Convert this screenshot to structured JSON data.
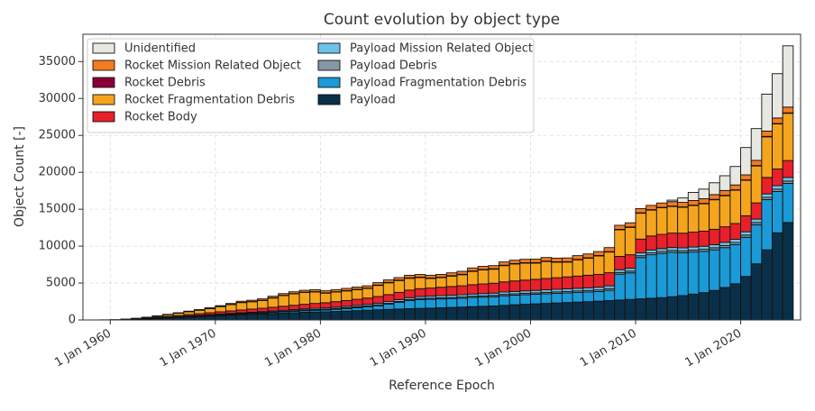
{
  "chart_data": {
    "type": "stacked-bar",
    "title": "Count evolution by object type",
    "x_label": "Reference Epoch",
    "y_label": "Object Count [-]",
    "x": [
      1957,
      1958,
      1959,
      1960,
      1961,
      1962,
      1963,
      1964,
      1965,
      1966,
      1967,
      1968,
      1969,
      1970,
      1971,
      1972,
      1973,
      1974,
      1975,
      1976,
      1977,
      1978,
      1979,
      1980,
      1981,
      1982,
      1983,
      1984,
      1985,
      1986,
      1987,
      1988,
      1989,
      1990,
      1991,
      1992,
      1993,
      1994,
      1995,
      1996,
      1997,
      1998,
      1999,
      2000,
      2001,
      2002,
      2003,
      2004,
      2005,
      2006,
      2007,
      2008,
      2009,
      2010,
      2011,
      2012,
      2013,
      2014,
      2015,
      2016,
      2017,
      2018,
      2019,
      2020,
      2021,
      2022,
      2023,
      2024
    ],
    "xlim": [
      1957.4,
      2025.7
    ],
    "xticks": [
      {
        "value": 1960,
        "label": "1 Jan 1960"
      },
      {
        "value": 1970,
        "label": "1 Jan 1970"
      },
      {
        "value": 1980,
        "label": "1 Jan 1980"
      },
      {
        "value": 1990,
        "label": "1 Jan 1990"
      },
      {
        "value": 2000,
        "label": "1 Jan 2000"
      },
      {
        "value": 2010,
        "label": "1 Jan 2010"
      },
      {
        "value": 2020,
        "label": "1 Jan 2020"
      }
    ],
    "ylim": [
      0,
      38700
    ],
    "yticks": [
      0,
      5000,
      10000,
      15000,
      20000,
      25000,
      30000,
      35000
    ],
    "grid": true,
    "legend_position": "upper-left",
    "series": [
      {
        "name": "Payload",
        "color": "#0a3049",
        "values": [
          0,
          5,
          10,
          25,
          50,
          90,
          140,
          200,
          260,
          330,
          400,
          460,
          520,
          580,
          640,
          700,
          750,
          800,
          860,
          920,
          980,
          1040,
          1080,
          1100,
          1150,
          1200,
          1260,
          1320,
          1380,
          1430,
          1480,
          1530,
          1570,
          1600,
          1650,
          1700,
          1750,
          1800,
          1850,
          1900,
          1980,
          2060,
          2120,
          2180,
          2240,
          2300,
          2360,
          2420,
          2480,
          2550,
          2620,
          2700,
          2780,
          2860,
          2940,
          3020,
          3150,
          3300,
          3500,
          3700,
          4000,
          4400,
          4900,
          5900,
          7600,
          9500,
          11800,
          13200
        ]
      },
      {
        "name": "Payload Fragmentation Debris",
        "color": "#1a9ad6",
        "values": [
          0,
          0,
          0,
          0,
          10,
          20,
          30,
          40,
          50,
          60,
          70,
          80,
          90,
          100,
          110,
          120,
          130,
          140,
          160,
          180,
          200,
          220,
          240,
          260,
          300,
          350,
          400,
          450,
          550,
          700,
          900,
          1100,
          1200,
          1200,
          1200,
          1200,
          1200,
          1250,
          1250,
          1250,
          1300,
          1300,
          1300,
          1300,
          1300,
          1300,
          1300,
          1300,
          1300,
          1300,
          1400,
          3500,
          3600,
          5600,
          5900,
          6000,
          6000,
          5800,
          5700,
          5600,
          5500,
          5400,
          5300,
          5300,
          5300,
          6800,
          5600,
          5300
        ]
      },
      {
        "name": "Payload Debris",
        "color": "#8797a3",
        "values": [
          0,
          0,
          0,
          0,
          0,
          5,
          10,
          15,
          20,
          25,
          30,
          35,
          40,
          45,
          50,
          55,
          60,
          65,
          70,
          75,
          80,
          85,
          90,
          95,
          100,
          105,
          110,
          115,
          120,
          125,
          130,
          135,
          140,
          145,
          150,
          155,
          160,
          165,
          170,
          175,
          180,
          185,
          190,
          195,
          200,
          205,
          210,
          215,
          220,
          225,
          230,
          235,
          240,
          245,
          250,
          255,
          260,
          265,
          270,
          275,
          280,
          285,
          290,
          295,
          300,
          305,
          310,
          315
        ]
      },
      {
        "name": "Payload Mission Related Object",
        "color": "#6cc3ea",
        "values": [
          0,
          0,
          0,
          0,
          5,
          10,
          15,
          20,
          30,
          40,
          50,
          60,
          70,
          80,
          90,
          100,
          110,
          120,
          130,
          140,
          150,
          160,
          170,
          180,
          190,
          200,
          210,
          220,
          230,
          240,
          250,
          260,
          270,
          280,
          290,
          300,
          300,
          300,
          310,
          310,
          320,
          320,
          330,
          330,
          340,
          340,
          350,
          350,
          360,
          360,
          370,
          370,
          380,
          380,
          390,
          390,
          400,
          400,
          410,
          410,
          420,
          430,
          440,
          450,
          460,
          470,
          480,
          490
        ]
      },
      {
        "name": "Rocket Body",
        "color": "#e8202b",
        "values": [
          0,
          3,
          8,
          15,
          30,
          50,
          75,
          100,
          130,
          160,
          190,
          220,
          260,
          300,
          340,
          380,
          420,
          460,
          500,
          540,
          580,
          620,
          660,
          700,
          740,
          780,
          820,
          860,
          900,
          940,
          980,
          1020,
          1060,
          1100,
          1140,
          1180,
          1220,
          1260,
          1300,
          1340,
          1380,
          1420,
          1460,
          1500,
          1540,
          1580,
          1620,
          1660,
          1700,
          1740,
          1780,
          1810,
          1840,
          1870,
          1900,
          1930,
          1960,
          1990,
          2020,
          2050,
          2080,
          2110,
          2140,
          2170,
          2200,
          2230,
          2260,
          2290
        ]
      },
      {
        "name": "Rocket Fragmentation Debris",
        "color": "#f5a51d",
        "values": [
          0,
          0,
          0,
          0,
          10,
          30,
          80,
          150,
          230,
          300,
          380,
          460,
          560,
          700,
          850,
          1000,
          1000,
          1050,
          1250,
          1450,
          1550,
          1600,
          1550,
          1300,
          1300,
          1300,
          1300,
          1300,
          1500,
          1600,
          1600,
          1600,
          1500,
          1300,
          1300,
          1400,
          1500,
          1800,
          1900,
          1900,
          2200,
          2300,
          2300,
          2200,
          2300,
          2100,
          2000,
          2200,
          2300,
          2500,
          2800,
          3600,
          3700,
          3500,
          3500,
          3600,
          3600,
          3500,
          3600,
          3700,
          4000,
          4200,
          4500,
          4800,
          5000,
          5500,
          6100,
          6400
        ]
      },
      {
        "name": "Rocket Debris",
        "color": "#8a0034",
        "values": [
          0,
          0,
          0,
          0,
          0,
          2,
          5,
          8,
          10,
          12,
          15,
          18,
          20,
          22,
          25,
          28,
          30,
          32,
          35,
          38,
          40,
          42,
          44,
          46,
          48,
          50,
          52,
          54,
          56,
          58,
          60,
          60,
          60,
          60,
          60,
          60,
          60,
          60,
          60,
          60,
          60,
          60,
          60,
          60,
          60,
          60,
          60,
          60,
          60,
          60,
          60,
          60,
          60,
          60,
          60,
          60,
          60,
          60,
          60,
          60,
          60,
          60,
          60,
          60,
          60,
          60,
          60,
          60
        ]
      },
      {
        "name": "Rocket Mission Related Object",
        "color": "#f37b21",
        "values": [
          0,
          0,
          0,
          0,
          5,
          10,
          20,
          30,
          40,
          50,
          60,
          70,
          90,
          110,
          130,
          150,
          170,
          190,
          210,
          230,
          240,
          250,
          260,
          270,
          280,
          290,
          300,
          310,
          320,
          330,
          340,
          350,
          360,
          370,
          380,
          390,
          400,
          410,
          420,
          430,
          440,
          450,
          460,
          470,
          480,
          490,
          500,
          510,
          520,
          530,
          540,
          550,
          560,
          570,
          580,
          590,
          600,
          610,
          620,
          630,
          640,
          650,
          660,
          680,
          700,
          720,
          750,
          780
        ]
      },
      {
        "name": "Unidentified",
        "color": "#e8e8e3",
        "values": [
          0,
          0,
          0,
          0,
          0,
          0,
          0,
          0,
          0,
          0,
          0,
          0,
          0,
          0,
          0,
          0,
          0,
          0,
          0,
          0,
          0,
          0,
          0,
          0,
          0,
          0,
          0,
          0,
          0,
          0,
          0,
          0,
          0,
          0,
          0,
          0,
          0,
          0,
          0,
          0,
          0,
          0,
          0,
          0,
          0,
          0,
          0,
          0,
          0,
          0,
          0,
          0,
          0,
          0,
          0,
          0,
          200,
          600,
          1100,
          1300,
          1600,
          2000,
          2500,
          3700,
          4300,
          5000,
          6000,
          8300
        ]
      }
    ]
  }
}
